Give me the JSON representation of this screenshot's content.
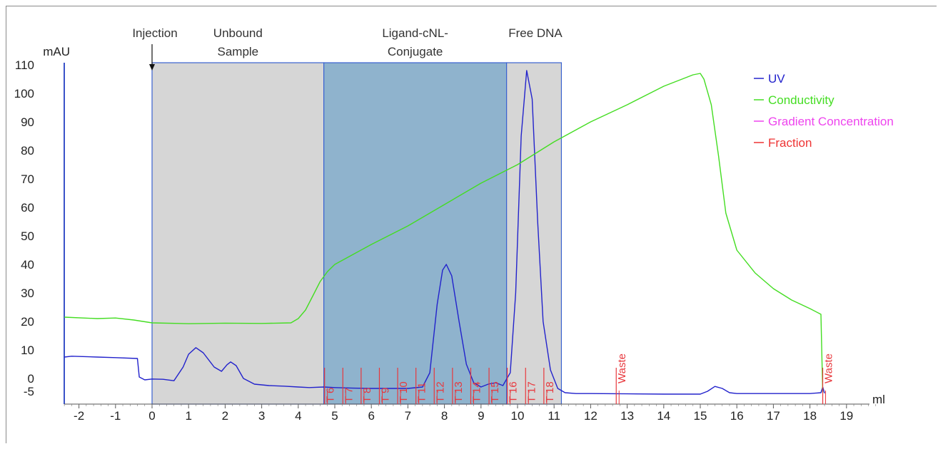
{
  "chart_data": {
    "type": "line",
    "xlabel": "ml",
    "ylabel": "mAU",
    "xlim": [
      -2.4,
      19.9
    ],
    "ylim": [
      -5,
      110
    ],
    "x_ticks": [
      -2,
      -1,
      0,
      1,
      2,
      3,
      4,
      5,
      6,
      7,
      8,
      9,
      10,
      11,
      12,
      13,
      14,
      15,
      16,
      17,
      18,
      19
    ],
    "y_ticks": [
      -5,
      0,
      10,
      20,
      30,
      40,
      50,
      60,
      70,
      80,
      90,
      100,
      110
    ],
    "legend": [
      {
        "name": "UV",
        "color": "#2222cc"
      },
      {
        "name": "Conductivity",
        "color": "#44dd22"
      },
      {
        "name": "Gradient Concentration",
        "color": "#ee44ee"
      },
      {
        "name": "Fraction",
        "color": "#ee3333"
      }
    ],
    "legend_position": "top-right",
    "series": [
      {
        "name": "UV",
        "color": "#2222cc",
        "x": [
          -2.4,
          -2.2,
          -1.5,
          -1.0,
          -0.4,
          -0.35,
          -0.2,
          0.0,
          0.3,
          0.6,
          0.85,
          1.0,
          1.2,
          1.4,
          1.7,
          1.9,
          2.05,
          2.15,
          2.3,
          2.5,
          2.8,
          3.2,
          3.6,
          4.0,
          4.3,
          4.7,
          5.0,
          5.5,
          6.0,
          6.5,
          7.0,
          7.4,
          7.6,
          7.8,
          7.95,
          8.05,
          8.2,
          8.4,
          8.6,
          8.8,
          9.0,
          9.2,
          9.4,
          9.6,
          9.8,
          9.95,
          10.1,
          10.25,
          10.4,
          10.55,
          10.7,
          10.9,
          11.1,
          11.3,
          11.6,
          12.0,
          13.0,
          14.0,
          15.0,
          15.2,
          15.4,
          15.6,
          15.8,
          16.0,
          17.0,
          18.0,
          18.3,
          18.35,
          18.4
        ],
        "y": [
          7.5,
          7.8,
          7.5,
          7.3,
          7.0,
          0.5,
          -0.5,
          -0.2,
          -0.3,
          -0.8,
          4,
          8.5,
          10.8,
          9,
          4,
          2.5,
          4.8,
          5.8,
          4.5,
          0,
          -2,
          -2.5,
          -2.7,
          -3.0,
          -3.2,
          -3.0,
          -3.2,
          -3.4,
          -3.5,
          -3.5,
          -3.5,
          -3.0,
          2,
          26,
          38,
          40,
          36,
          20,
          5,
          -1.5,
          -3.0,
          -2.0,
          -1.5,
          -2.5,
          2,
          30,
          85,
          108,
          98,
          55,
          20,
          3,
          -3.5,
          -5.0,
          -5.3,
          -5.3,
          -5.4,
          -5.5,
          -5.5,
          -4.5,
          -2.8,
          -3.5,
          -5.0,
          -5.3,
          -5.3,
          -5.3,
          -5.0,
          -3.0,
          -5.2
        ]
      },
      {
        "name": "Conductivity",
        "color": "#44dd22",
        "x": [
          -2.4,
          -1.5,
          -1.0,
          -0.5,
          0.0,
          1.0,
          2.0,
          3.0,
          3.8,
          4.0,
          4.2,
          4.4,
          4.6,
          4.8,
          5.0,
          5.5,
          6.0,
          7.0,
          8.0,
          9.0,
          10.0,
          11.0,
          12.0,
          13.0,
          14.0,
          14.8,
          15.0,
          15.1,
          15.3,
          15.5,
          15.7,
          16.0,
          16.5,
          17.0,
          17.5,
          18.0,
          18.3,
          18.35
        ],
        "y": [
          21.5,
          21,
          21.2,
          20.5,
          19.5,
          19.2,
          19.4,
          19.3,
          19.5,
          21,
          24,
          29,
          34,
          37.5,
          40,
          43.5,
          47,
          53.5,
          61,
          68.5,
          75,
          83,
          90,
          96,
          102.5,
          106.5,
          107,
          105,
          96,
          78,
          58,
          45,
          37,
          31.5,
          27.5,
          24.5,
          22.5,
          -5
        ]
      }
    ],
    "regions": [
      {
        "label_lines": [
          "Unbound",
          "Sample"
        ],
        "x_start": 0.0,
        "x_end": 4.7,
        "color": "#d6d6d6"
      },
      {
        "label_lines": [
          "Ligand-cNL-",
          "Conjugate"
        ],
        "x_start": 4.7,
        "x_end": 9.7,
        "color": "#8fb3cd"
      },
      {
        "label_lines": [
          "Free DNA"
        ],
        "x_start": 9.7,
        "x_end": 11.2,
        "color": "#d6d6d6"
      }
    ],
    "injection": {
      "label": "Injection",
      "x": 0.0
    },
    "fractions": [
      {
        "label": "T 6",
        "x": 4.72
      },
      {
        "label": "T 7",
        "x": 5.22
      },
      {
        "label": "T 8",
        "x": 5.72
      },
      {
        "label": "T 9",
        "x": 6.22
      },
      {
        "label": "T 10",
        "x": 6.72
      },
      {
        "label": "T 11",
        "x": 7.22
      },
      {
        "label": "T 12",
        "x": 7.72
      },
      {
        "label": "T 13",
        "x": 8.22
      },
      {
        "label": "T 14",
        "x": 8.72
      },
      {
        "label": "T 15",
        "x": 9.22
      },
      {
        "label": "T 16",
        "x": 9.72
      },
      {
        "label": "T 17",
        "x": 10.22
      },
      {
        "label": "T 18",
        "x": 10.72
      },
      {
        "label": "Waste",
        "x": 12.7
      },
      {
        "label": "Waste",
        "x": 18.35
      }
    ]
  }
}
